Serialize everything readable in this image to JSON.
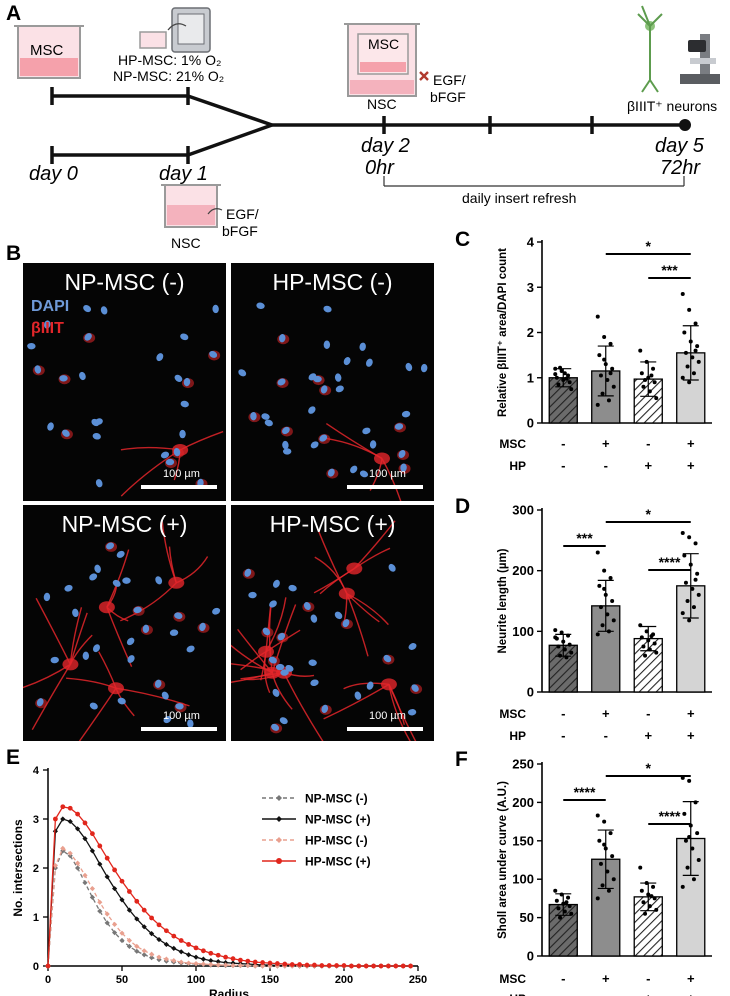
{
  "panels": {
    "A": "A",
    "B": "B",
    "C": "C",
    "D": "D",
    "E": "E",
    "F": "F"
  },
  "schematic": {
    "msc_label": "MSC",
    "hp_line": "HP-MSC: 1% O₂",
    "np_line": "NP-MSC: 21% O₂",
    "day0": "day 0",
    "day1": "day 1",
    "day2": "day 2",
    "hr0": "0hr",
    "day5": "day 5",
    "hr72": "72hr",
    "nsc_label_top": "NSC",
    "egf_top_1": "EGF/",
    "egf_top_2": "bFGF",
    "nsc_label_bottom": "NSC",
    "egf_bottom_1": "EGF/",
    "egf_bottom_2": "bFGF",
    "refresh": "daily insert refresh",
    "neurons": "βIIIT⁺ neurons"
  },
  "micrographs": {
    "np_minus": "NP-MSC (-)",
    "hp_minus": "HP-MSC (-)",
    "np_plus": "NP-MSC (+)",
    "hp_plus": "HP-MSC (+)",
    "dapi": "DAPI",
    "biiit": "βIIIT",
    "scale": "100 µm",
    "colors": {
      "dapi": "#5b8fd6",
      "biiit": "#e3262a"
    }
  },
  "chart_data": [
    {
      "id": "C",
      "type": "bar",
      "ylabel": "Relative βIIIT⁺ area/DAPI count",
      "ylim": [
        0,
        4
      ],
      "yticks": [
        "0",
        "1",
        "2",
        "3",
        "4"
      ],
      "row_labels": [
        "MSC",
        "HP"
      ],
      "msc": [
        "-",
        "+",
        "-",
        "+"
      ],
      "hp": [
        "-",
        "-",
        "+",
        "+"
      ],
      "values": [
        1.0,
        1.15,
        0.97,
        1.55
      ],
      "sd": [
        0.2,
        0.55,
        0.38,
        0.6
      ],
      "points": [
        [
          1.2,
          1.15,
          1.05,
          1.0,
          0.95,
          0.9,
          0.85,
          1.1,
          0.75,
          1.22,
          0.98,
          1.08
        ],
        [
          2.35,
          1.9,
          1.75,
          1.5,
          1.3,
          1.2,
          1.05,
          0.95,
          0.8,
          0.65,
          0.5,
          0.4,
          1.4,
          1.1
        ],
        [
          1.6,
          1.35,
          1.2,
          1.1,
          1.0,
          0.9,
          0.8,
          0.7,
          0.55,
          0.95,
          1.05
        ],
        [
          2.85,
          2.5,
          2.2,
          2.0,
          1.8,
          1.7,
          1.55,
          1.45,
          1.35,
          1.25,
          1.1,
          1.0,
          0.9,
          1.6
        ]
      ],
      "brackets": [
        {
          "from": 1,
          "to": 3,
          "label": "*"
        },
        {
          "from": 2,
          "to": 3,
          "label": "***"
        }
      ]
    },
    {
      "id": "D",
      "type": "bar",
      "ylabel": "Neurite length (µm)",
      "ylim": [
        0,
        300
      ],
      "yticks": [
        "0",
        "100",
        "200",
        "300"
      ],
      "row_labels": [
        "MSC",
        "HP"
      ],
      "msc": [
        "-",
        "+",
        "-",
        "+"
      ],
      "hp": [
        "-",
        "-",
        "+",
        "+"
      ],
      "values": [
        77,
        142,
        88,
        175
      ],
      "sd": [
        18,
        42,
        20,
        53
      ],
      "points": [
        [
          102,
          98,
          93,
          88,
          83,
          78,
          75,
          70,
          65,
          60,
          57,
          90
        ],
        [
          230,
          200,
          188,
          175,
          160,
          150,
          140,
          128,
          118,
          110,
          100,
          95,
          170
        ],
        [
          110,
          100,
          95,
          90,
          85,
          80,
          75,
          70,
          65,
          60,
          92
        ],
        [
          262,
          255,
          245,
          225,
          210,
          195,
          180,
          170,
          160,
          150,
          140,
          130,
          118,
          185
        ]
      ],
      "brackets": [
        {
          "from": 0,
          "to": 1,
          "label": "***"
        },
        {
          "from": 1,
          "to": 3,
          "label": "*"
        },
        {
          "from": 2,
          "to": 3,
          "label": "****"
        }
      ]
    },
    {
      "id": "E",
      "type": "line",
      "xlabel": "Radius",
      "ylabel": "No. intersections",
      "xlim": [
        0,
        250
      ],
      "ylim": [
        0,
        4
      ],
      "xticks": [
        "0",
        "50",
        "100",
        "150",
        "200",
        "250"
      ],
      "yticks": [
        "0",
        "1",
        "2",
        "3",
        "4"
      ],
      "x": [
        0,
        5,
        10,
        15,
        20,
        25,
        30,
        35,
        40,
        45,
        50,
        55,
        60,
        65,
        70,
        75,
        80,
        85,
        90,
        95,
        100,
        105,
        110,
        115,
        120,
        125,
        130,
        135,
        140,
        145,
        150,
        155,
        160,
        165,
        170,
        175,
        180,
        185,
        190,
        195,
        200,
        205,
        210,
        215,
        220,
        225,
        230,
        235,
        240,
        245
      ],
      "series": [
        {
          "name": "NP-MSC (-)",
          "color": "#777777",
          "dashed": true,
          "marker": "diamond",
          "values": [
            0,
            2.0,
            2.35,
            2.25,
            2.0,
            1.7,
            1.4,
            1.12,
            0.88,
            0.68,
            0.52,
            0.4,
            0.3,
            0.23,
            0.17,
            0.13,
            0.1,
            0.08,
            0.06,
            0.05,
            0.04,
            0.03,
            0.02,
            0.02,
            0.01,
            0.01,
            0.01,
            0.01,
            0,
            0,
            0,
            0,
            0,
            0,
            0,
            0,
            0,
            0,
            0,
            0,
            0,
            0,
            0,
            0,
            0,
            0,
            0,
            0,
            0,
            0
          ]
        },
        {
          "name": "NP-MSC (+)",
          "color": "#111111",
          "dashed": false,
          "marker": "diamond",
          "values": [
            0,
            2.75,
            3.0,
            2.95,
            2.8,
            2.6,
            2.35,
            2.08,
            1.82,
            1.58,
            1.35,
            1.14,
            0.96,
            0.8,
            0.66,
            0.54,
            0.44,
            0.36,
            0.29,
            0.23,
            0.18,
            0.14,
            0.11,
            0.09,
            0.07,
            0.06,
            0.05,
            0.04,
            0.03,
            0.02,
            0.02,
            0.01,
            0.01,
            0.01,
            0,
            0,
            0,
            0,
            0,
            0,
            0,
            0,
            0,
            0,
            0,
            0,
            0,
            0,
            0,
            0
          ]
        },
        {
          "name": "HP-MSC (-)",
          "color": "#e9a08f",
          "dashed": true,
          "marker": "diamond",
          "values": [
            0,
            2.05,
            2.4,
            2.3,
            2.1,
            1.85,
            1.58,
            1.3,
            1.06,
            0.85,
            0.67,
            0.52,
            0.4,
            0.31,
            0.24,
            0.18,
            0.14,
            0.11,
            0.08,
            0.06,
            0.05,
            0.04,
            0.03,
            0.02,
            0.02,
            0.01,
            0.01,
            0.01,
            0,
            0,
            0,
            0,
            0,
            0,
            0,
            0,
            0,
            0,
            0,
            0,
            0,
            0,
            0,
            0,
            0,
            0,
            0,
            0,
            0,
            0
          ]
        },
        {
          "name": "HP-MSC (+)",
          "color": "#e1261c",
          "dashed": false,
          "marker": "circle",
          "values": [
            0,
            3.0,
            3.25,
            3.22,
            3.1,
            2.92,
            2.7,
            2.45,
            2.2,
            1.96,
            1.73,
            1.52,
            1.32,
            1.14,
            0.98,
            0.84,
            0.72,
            0.61,
            0.52,
            0.44,
            0.37,
            0.31,
            0.26,
            0.22,
            0.18,
            0.15,
            0.12,
            0.1,
            0.08,
            0.07,
            0.06,
            0.05,
            0.04,
            0.03,
            0.03,
            0.02,
            0.02,
            0.01,
            0.01,
            0.01,
            0.01,
            0,
            0,
            0,
            0,
            0,
            0,
            0,
            0,
            0
          ]
        }
      ]
    },
    {
      "id": "F",
      "type": "bar",
      "ylabel": "Sholl area under curve (A.U.)",
      "ylim": [
        0,
        250
      ],
      "yticks": [
        "0",
        "50",
        "100",
        "150",
        "200",
        "250"
      ],
      "row_labels": [
        "MSC",
        "HP"
      ],
      "msc": [
        "-",
        "+",
        "-",
        "+"
      ],
      "hp": [
        "-",
        "-",
        "+",
        "+"
      ],
      "values": [
        67,
        126,
        77,
        153
      ],
      "sd": [
        14,
        38,
        18,
        48
      ],
      "points": [
        [
          85,
          80,
          76,
          72,
          68,
          65,
          62,
          58,
          55,
          50,
          70
        ],
        [
          183,
          175,
          160,
          150,
          140,
          130,
          120,
          110,
          100,
          92,
          85,
          75,
          145
        ],
        [
          115,
          95,
          90,
          85,
          80,
          75,
          70,
          65,
          60,
          55,
          78
        ],
        [
          232,
          228,
          200,
          185,
          170,
          160,
          150,
          140,
          125,
          115,
          100,
          90,
          155
        ]
      ],
      "brackets": [
        {
          "from": 0,
          "to": 1,
          "label": "****"
        },
        {
          "from": 1,
          "to": 3,
          "label": "*"
        },
        {
          "from": 2,
          "to": 3,
          "label": "****"
        }
      ]
    }
  ]
}
